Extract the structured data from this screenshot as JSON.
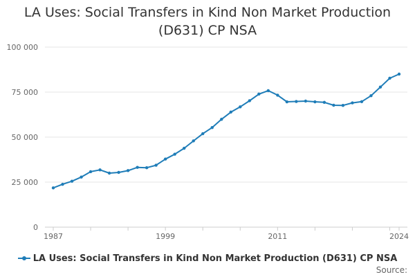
{
  "colors": {
    "series": "#1f7db8",
    "grid": "#e6e6e6",
    "axis": "#cccccc",
    "text": "#333333",
    "muted": "#666666"
  },
  "chart_data": {
    "type": "line",
    "title": "LA Uses: Social Transfers in Kind Non Market Production (D631) CP NSA",
    "xlabel": "",
    "ylabel": "",
    "xlim": [
      1987,
      2024
    ],
    "ylim": [
      0,
      100000
    ],
    "x_ticks": [
      1987,
      1999,
      2011,
      2024
    ],
    "x_tick_labels": [
      "1987",
      "1999",
      "2011",
      "2024"
    ],
    "y_ticks": [
      0,
      25000,
      50000,
      75000,
      100000
    ],
    "y_tick_labels": [
      "0",
      "25 000",
      "50 000",
      "75 000",
      "100 000"
    ],
    "grid": "horizontal",
    "legend_position": "bottom",
    "x": [
      1987,
      1988,
      1989,
      1990,
      1991,
      1992,
      1993,
      1994,
      1995,
      1996,
      1997,
      1998,
      1999,
      2000,
      2001,
      2002,
      2003,
      2004,
      2005,
      2006,
      2007,
      2008,
      2009,
      2010,
      2011,
      2012,
      2013,
      2014,
      2015,
      2016,
      2017,
      2018,
      2019,
      2020,
      2021,
      2022,
      2023,
      2024
    ],
    "series": [
      {
        "name": "LA Uses: Social Transfers in Kind Non Market Production (D631) CP NSA",
        "values": [
          21800,
          23800,
          25500,
          27800,
          30800,
          31800,
          30000,
          30400,
          31400,
          33200,
          33000,
          34400,
          37800,
          40500,
          43800,
          47900,
          51900,
          55300,
          59900,
          63900,
          66800,
          70200,
          73900,
          75800,
          73300,
          69600,
          69800,
          70000,
          69600,
          69300,
          67700,
          67600,
          69000,
          69700,
          73000,
          77800,
          82700,
          85000
        ]
      }
    ]
  },
  "legend": {
    "label": "LA Uses: Social Transfers in Kind Non Market Production (D631) CP NSA"
  },
  "footer": {
    "source_label": "Source:"
  }
}
